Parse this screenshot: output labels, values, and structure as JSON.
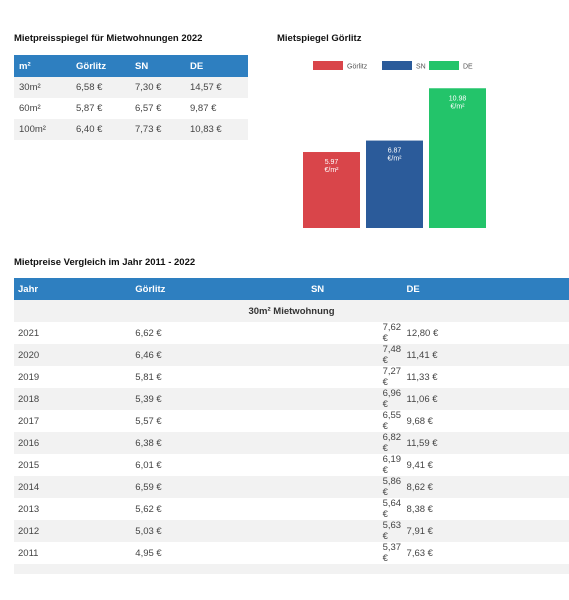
{
  "mietpreisspiegel": {
    "title": "Mietpreisspiegel für Mietwohnungen 2022",
    "headers": [
      "m²",
      "Görlitz",
      "SN",
      "DE"
    ],
    "rows": [
      [
        "30m²",
        "6,58 €",
        "7,30 €",
        "14,57 €"
      ],
      [
        "60m²",
        "5,87 €",
        "6,57 €",
        "9,87 €"
      ],
      [
        "100m²",
        "6,40 €",
        "7,73 €",
        "10,83 €"
      ]
    ]
  },
  "mietspiegel_chart": {
    "title": "Mietspiegel Görlitz"
  },
  "chart_data": {
    "type": "bar",
    "title": "Mietspiegel Görlitz",
    "categories": [
      "Görlitz",
      "SN",
      "DE"
    ],
    "values": [
      5.97,
      6.87,
      10.98
    ],
    "value_labels": [
      "5.97",
      "6.87",
      "10.98"
    ],
    "unit_label": "€/m²",
    "colors": [
      "#d9454a",
      "#2b5b9a",
      "#23c46a"
    ],
    "legend": [
      "Görlitz",
      "SN",
      "DE"
    ],
    "legend_position": "top",
    "ylim": [
      0,
      11
    ],
    "grid": false
  },
  "vergleich": {
    "title": "Mietpreise Vergleich im Jahr 2011 - 2022",
    "headers": [
      "Jahr",
      "Görlitz",
      "SN",
      "DE"
    ],
    "section_label": "30m² Mietwohnung",
    "rows": [
      [
        "2021",
        "6,62 €",
        "7,62 €",
        "12,80 €"
      ],
      [
        "2020",
        "6,46 €",
        "7,48 €",
        "11,41 €"
      ],
      [
        "2019",
        "5,81 €",
        "7,27 €",
        "11,33 €"
      ],
      [
        "2018",
        "5,39 €",
        "6,96 €",
        "11,06 €"
      ],
      [
        "2017",
        "5,57 €",
        "6,55 €",
        "9,68 €"
      ],
      [
        "2016",
        "6,38 €",
        "6,82 €",
        "11,59 €"
      ],
      [
        "2015",
        "6,01 €",
        "6,19 €",
        "9,41 €"
      ],
      [
        "2014",
        "6,59 €",
        "5,86 €",
        "8,62 €"
      ],
      [
        "2013",
        "5,62 €",
        "5,64 €",
        "8,38 €"
      ],
      [
        "2012",
        "5,03 €",
        "5,63 €",
        "7,91 €"
      ],
      [
        "2011",
        "4,95 €",
        "5,37 €",
        "7,63 €"
      ]
    ]
  }
}
